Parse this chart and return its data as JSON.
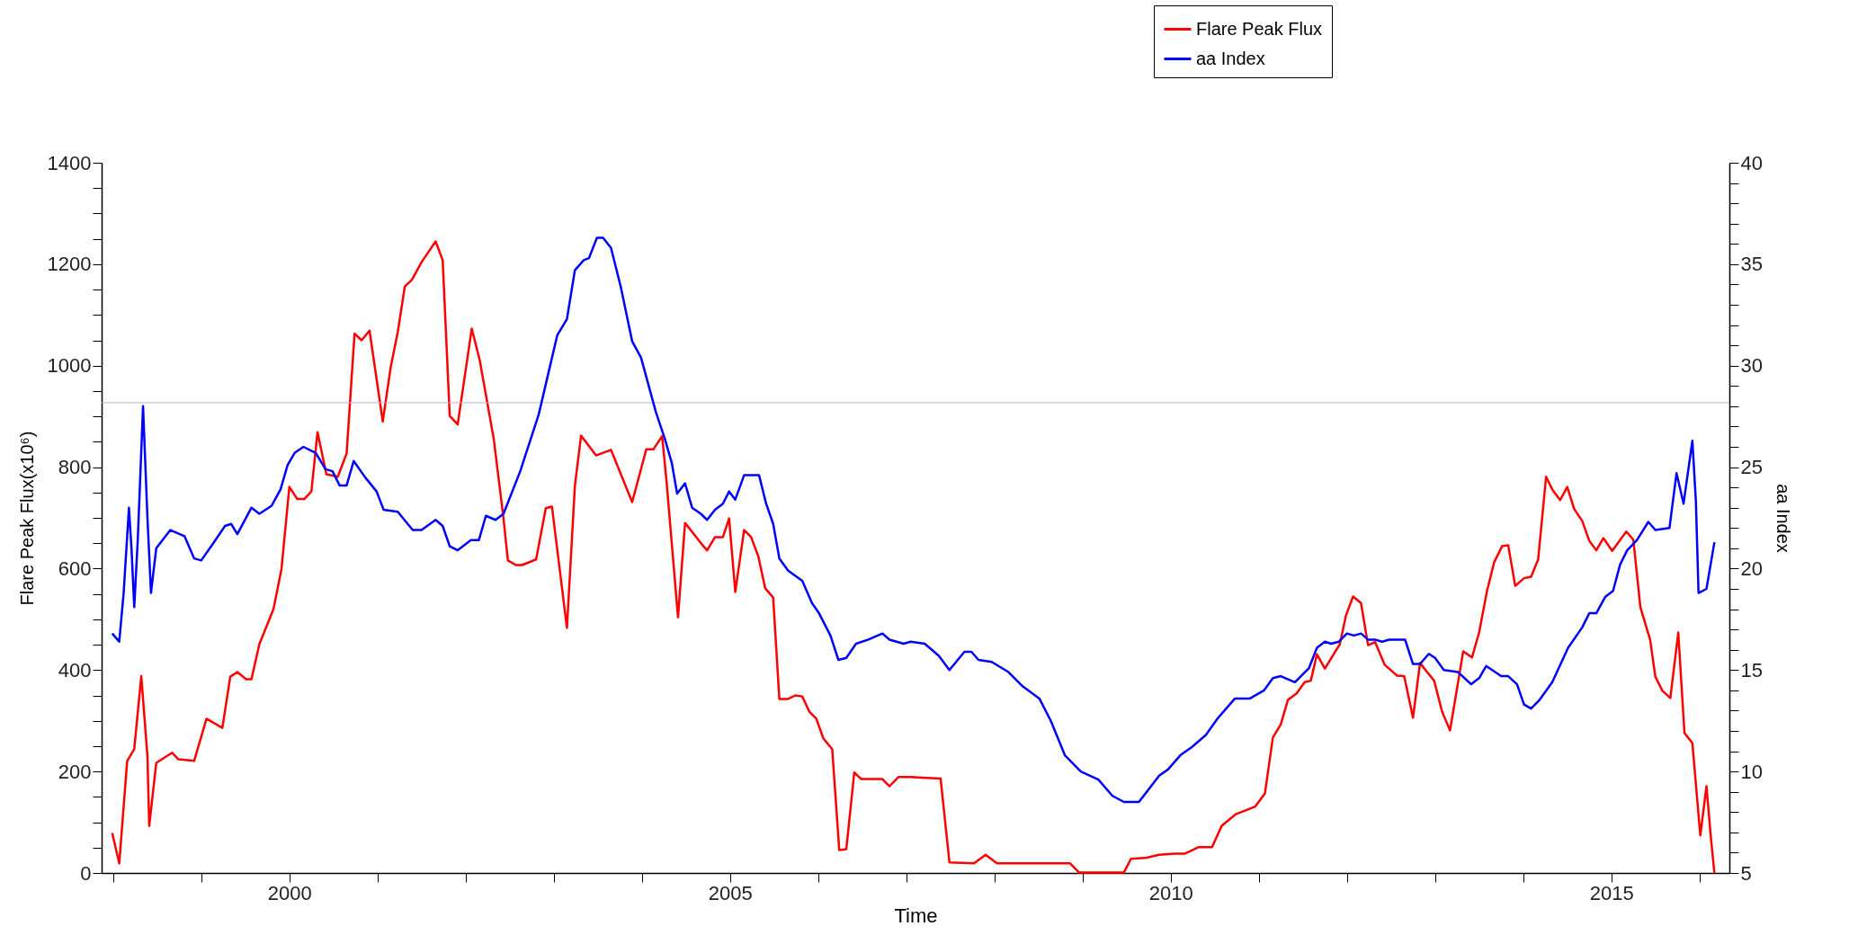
{
  "chart_data": {
    "type": "line",
    "xlabel": "Time",
    "ylabel": "Flare Peak Flux(x10⁶)",
    "y2label": "aa Index",
    "legend": "top right",
    "grid": false,
    "xlim": [
      1997.87,
      2016.34
    ],
    "xticks": [
      {
        "value": 1998,
        "label": null
      },
      {
        "value": 1999,
        "label": null
      },
      2000,
      {
        "value": 2001,
        "label": null
      },
      {
        "value": 2002,
        "label": null
      },
      {
        "value": 2003,
        "label": null
      },
      {
        "value": 2004,
        "label": null
      },
      2005,
      {
        "value": 2006,
        "label": null
      },
      {
        "value": 2007,
        "label": null
      },
      {
        "value": 2008,
        "label": null
      },
      {
        "value": 2009,
        "label": null
      },
      2010,
      {
        "value": 2011,
        "label": null
      },
      {
        "value": 2012,
        "label": null
      },
      {
        "value": 2013,
        "label": null
      },
      {
        "value": 2014,
        "label": null
      },
      2015,
      {
        "value": 2016,
        "label": null
      }
    ],
    "ylim": [
      0,
      1400
    ],
    "yticks": [
      0,
      {
        "value": 50,
        "label": null
      },
      {
        "value": 100,
        "label": null
      },
      {
        "value": 150,
        "label": null
      },
      200,
      {
        "value": 250,
        "label": null
      },
      {
        "value": 300,
        "label": null
      },
      {
        "value": 350,
        "label": null
      },
      400,
      {
        "value": 450,
        "label": null
      },
      {
        "value": 500,
        "label": null
      },
      {
        "value": 550,
        "label": null
      },
      600,
      {
        "value": 650,
        "label": null
      },
      {
        "value": 700,
        "label": null
      },
      {
        "value": 750,
        "label": null
      },
      800,
      {
        "value": 850,
        "label": null
      },
      {
        "value": 900,
        "label": null
      },
      {
        "value": 950,
        "label": null
      },
      1000,
      {
        "value": 1050,
        "label": null
      },
      {
        "value": 1100,
        "label": null
      },
      {
        "value": 1150,
        "label": null
      },
      1200,
      {
        "value": 1250,
        "label": null
      },
      {
        "value": 1300,
        "label": null
      },
      {
        "value": 1350,
        "label": null
      },
      1400
    ],
    "y2lim": [
      5,
      40
    ],
    "y2ticks": [
      5,
      {
        "value": 6,
        "label": null
      },
      {
        "value": 7,
        "label": null
      },
      {
        "value": 8,
        "label": null
      },
      {
        "value": 9,
        "label": null
      },
      10,
      {
        "value": 11,
        "label": null
      },
      {
        "value": 12,
        "label": null
      },
      {
        "value": 13,
        "label": null
      },
      {
        "value": 14,
        "label": null
      },
      15,
      {
        "value": 16,
        "label": null
      },
      {
        "value": 17,
        "label": null
      },
      {
        "value": 18,
        "label": null
      },
      {
        "value": 19,
        "label": null
      },
      20,
      {
        "value": 21,
        "label": null
      },
      {
        "value": 22,
        "label": null
      },
      {
        "value": 23,
        "label": null
      },
      {
        "value": 24,
        "label": null
      },
      25,
      {
        "value": 26,
        "label": null
      },
      {
        "value": 27,
        "label": null
      },
      {
        "value": 28,
        "label": null
      },
      {
        "value": 29,
        "label": null
      },
      30,
      {
        "value": 31,
        "label": null
      },
      {
        "value": 32,
        "label": null
      },
      {
        "value": 33,
        "label": null
      },
      {
        "value": 34,
        "label": null
      },
      35,
      {
        "value": 36,
        "label": null
      },
      {
        "value": 37,
        "label": null
      },
      {
        "value": 38,
        "label": null
      },
      {
        "value": 39,
        "label": null
      },
      40
    ],
    "ref_lines": [
      {
        "axis": "y",
        "value": 927,
        "color": "#b4b4e0"
      }
    ],
    "series": [
      {
        "name": "Flare Peak Flux",
        "color": "#ff0000",
        "x": [
          1997.99,
          1998.07,
          1998.16,
          1998.24,
          1998.32,
          1998.39,
          1998.41,
          1998.49,
          1998.67,
          1998.74,
          1998.92,
          1999.06,
          1999.24,
          1999.33,
          1999.41,
          1999.51,
          1999.57,
          1999.66,
          1999.82,
          1999.91,
          2000.0,
          2000.09,
          2000.17,
          2000.25,
          2000.32,
          2000.42,
          2000.55,
          2000.65,
          2000.74,
          2000.82,
          2000.91,
          2001.06,
          2001.15,
          2001.23,
          2001.31,
          2001.39,
          2001.5,
          2001.66,
          2001.74,
          2001.82,
          2001.91,
          2002.07,
          2002.16,
          2002.32,
          2002.43,
          2002.48,
          2002.57,
          2002.64,
          2002.8,
          2002.91,
          2002.98,
          2003.15,
          2003.24,
          2003.31,
          2003.48,
          2003.65,
          2003.89,
          2004.05,
          2004.13,
          2004.23,
          2004.28,
          2004.41,
          2004.49,
          2004.68,
          2004.74,
          2004.83,
          2004.92,
          2004.99,
          2005.06,
          2005.16,
          2005.24,
          2005.32,
          2005.4,
          2005.49,
          2005.56,
          2005.66,
          2005.74,
          2005.82,
          2005.9,
          2005.98,
          2006.06,
          2006.16,
          2006.24,
          2006.32,
          2006.41,
          2006.49,
          2006.73,
          2006.81,
          2006.91,
          2007.05,
          2007.39,
          2007.49,
          2007.77,
          2007.9,
          2008.03,
          2008.86,
          2008.96,
          2009.47,
          2009.55,
          2009.73,
          2009.87,
          2010.05,
          2010.16,
          2010.32,
          2010.47,
          2010.58,
          2010.74,
          2010.96,
          2011.07,
          2011.16,
          2011.25,
          2011.33,
          2011.43,
          2011.52,
          2011.59,
          2011.66,
          2011.75,
          2011.92,
          2011.99,
          2012.07,
          2012.16,
          2012.24,
          2012.32,
          2012.43,
          2012.57,
          2012.65,
          2012.75,
          2012.83,
          2012.91,
          2012.99,
          2013.08,
          2013.17,
          2013.32,
          2013.42,
          2013.5,
          2013.59,
          2013.67,
          2013.76,
          2013.83,
          2013.91,
          2014.01,
          2014.09,
          2014.17,
          2014.26,
          2014.33,
          2014.42,
          2014.5,
          2014.58,
          2014.67,
          2014.75,
          2014.83,
          2014.91,
          2015.01,
          2015.17,
          2015.25,
          2015.33,
          2015.44,
          2015.5,
          2015.58,
          2015.67,
          2015.76,
          2015.83,
          2015.92,
          2016.01,
          2016.08,
          2016.13,
          2016.17
        ],
        "values": [
          79,
          19,
          221,
          244,
          388,
          230,
          93,
          217,
          237,
          224,
          221,
          304,
          286,
          387,
          396,
          382,
          382,
          451,
          520,
          598,
          761,
          737,
          737,
          752,
          869,
          786,
          781,
          827,
          1063,
          1050,
          1069,
          890,
          997,
          1066,
          1156,
          1169,
          1204,
          1245,
          1208,
          901,
          884,
          1073,
          1011,
          855,
          699,
          616,
          607,
          607,
          618,
          719,
          722,
          483,
          763,
          862,
          823,
          834,
          731,
          835,
          835,
          861,
          772,
          504,
          690,
          648,
          636,
          662,
          662,
          699,
          554,
          676,
          662,
          625,
          561,
          543,
          343,
          343,
          350,
          348,
          318,
          304,
          265,
          244,
          45,
          47,
          198,
          185,
          185,
          171,
          189,
          189,
          186,
          21,
          19,
          36,
          19,
          19,
          1,
          1,
          28,
          30,
          36,
          38,
          38,
          51,
          51,
          93,
          116,
          131,
          157,
          267,
          293,
          341,
          354,
          376,
          379,
          431,
          403,
          451,
          508,
          545,
          532,
          449,
          455,
          410,
          389,
          388,
          306,
          414,
          396,
          379,
          318,
          281,
          437,
          425,
          474,
          556,
          612,
          644,
          646,
          566,
          581,
          584,
          618,
          781,
          756,
          735,
          761,
          717,
          694,
          655,
          636,
          660,
          635,
          673,
          657,
          524,
          460,
          387,
          359,
          345,
          474,
          276,
          256,
          74,
          171,
          70,
          0
        ]
      },
      {
        "name": "aa Index",
        "color": "#0000ff",
        "axis": "y2",
        "x": [
          1997.99,
          1998.07,
          1998.12,
          1998.18,
          1998.21,
          1998.24,
          1998.28,
          1998.34,
          1998.39,
          1998.43,
          1998.49,
          1998.65,
          1998.81,
          1998.92,
          1999.0,
          1999.13,
          1999.27,
          1999.34,
          1999.41,
          1999.57,
          1999.66,
          1999.8,
          1999.9,
          1999.98,
          2000.06,
          2000.16,
          2000.3,
          2000.41,
          2000.49,
          2000.57,
          2000.65,
          2000.73,
          2000.86,
          2000.99,
          2001.07,
          2001.23,
          2001.4,
          2001.5,
          2001.66,
          2001.74,
          2001.82,
          2001.91,
          2002.06,
          2002.15,
          2002.23,
          2002.34,
          2002.43,
          2002.62,
          2002.83,
          2003.04,
          2003.15,
          2003.24,
          2003.34,
          2003.4,
          2003.49,
          2003.56,
          2003.65,
          2003.76,
          2003.89,
          2003.99,
          2004.16,
          2004.26,
          2004.34,
          2004.4,
          2004.49,
          2004.57,
          2004.67,
          2004.74,
          2004.83,
          2004.92,
          2004.99,
          2005.06,
          2005.16,
          2005.33,
          2005.41,
          2005.49,
          2005.56,
          2005.66,
          2005.82,
          2005.93,
          2006.01,
          2006.14,
          2006.23,
          2006.32,
          2006.43,
          2006.57,
          2006.73,
          2006.81,
          2006.97,
          2007.05,
          2007.21,
          2007.37,
          2007.49,
          2007.66,
          2007.74,
          2007.82,
          2007.97,
          2008.16,
          2008.32,
          2008.51,
          2008.64,
          2008.8,
          2008.98,
          2009.18,
          2009.34,
          2009.47,
          2009.64,
          2009.87,
          2009.97,
          2010.11,
          2010.24,
          2010.4,
          2010.53,
          2010.65,
          2010.73,
          2010.9,
          2011.06,
          2011.16,
          2011.25,
          2011.41,
          2011.57,
          2011.66,
          2011.75,
          2011.82,
          2011.91,
          2012.0,
          2012.08,
          2012.16,
          2012.24,
          2012.32,
          2012.4,
          2012.48,
          2012.66,
          2012.75,
          2012.83,
          2012.93,
          2013.0,
          2013.1,
          2013.26,
          2013.41,
          2013.5,
          2013.58,
          2013.75,
          2013.83,
          2013.93,
          2014.01,
          2014.09,
          2014.18,
          2014.33,
          2014.51,
          2014.67,
          2014.75,
          2014.83,
          2014.93,
          2015.02,
          2015.1,
          2015.18,
          2015.29,
          2015.42,
          2015.5,
          2015.66,
          2015.74,
          2015.82,
          2015.92,
          2015.96,
          2015.99,
          2016.08,
          2016.17
        ],
        "values": [
          16.8,
          16.4,
          18.8,
          23.0,
          20.9,
          18.1,
          21.4,
          28.0,
          22.5,
          18.8,
          21.0,
          21.9,
          21.6,
          20.5,
          20.4,
          21.2,
          22.1,
          22.2,
          21.7,
          23.0,
          22.7,
          23.1,
          23.9,
          25.1,
          25.7,
          26.0,
          25.7,
          24.9,
          24.8,
          24.1,
          24.1,
          25.3,
          24.5,
          23.8,
          22.9,
          22.8,
          21.9,
          21.9,
          22.4,
          22.1,
          21.1,
          20.9,
          21.4,
          21.4,
          22.6,
          22.4,
          22.7,
          24.8,
          27.6,
          31.5,
          32.3,
          34.7,
          35.2,
          35.3,
          36.3,
          36.3,
          35.8,
          33.9,
          31.2,
          30.4,
          27.7,
          26.4,
          25.2,
          23.7,
          24.2,
          23.0,
          22.7,
          22.4,
          22.9,
          23.2,
          23.8,
          23.4,
          24.6,
          24.6,
          23.2,
          22.2,
          20.5,
          19.9,
          19.4,
          18.3,
          17.8,
          16.7,
          15.5,
          15.6,
          16.3,
          16.5,
          16.8,
          16.5,
          16.3,
          16.4,
          16.3,
          15.7,
          15.0,
          15.9,
          15.9,
          15.5,
          15.4,
          14.9,
          14.2,
          13.6,
          12.5,
          10.8,
          10.0,
          9.6,
          8.8,
          8.5,
          8.5,
          9.8,
          10.1,
          10.8,
          11.2,
          11.8,
          12.6,
          13.2,
          13.6,
          13.6,
          14.0,
          14.6,
          14.7,
          14.4,
          15.1,
          16.1,
          16.4,
          16.3,
          16.4,
          16.8,
          16.7,
          16.8,
          16.5,
          16.5,
          16.4,
          16.5,
          16.5,
          15.3,
          15.3,
          15.8,
          15.6,
          15.0,
          14.9,
          14.3,
          14.6,
          15.2,
          14.7,
          14.7,
          14.3,
          13.3,
          13.1,
          13.5,
          14.4,
          16.1,
          17.1,
          17.8,
          17.8,
          18.6,
          18.9,
          20.2,
          20.9,
          21.4,
          22.3,
          21.9,
          22.0,
          24.7,
          23.2,
          26.3,
          23.3,
          18.8,
          19.0,
          21.3
        ]
      }
    ]
  }
}
